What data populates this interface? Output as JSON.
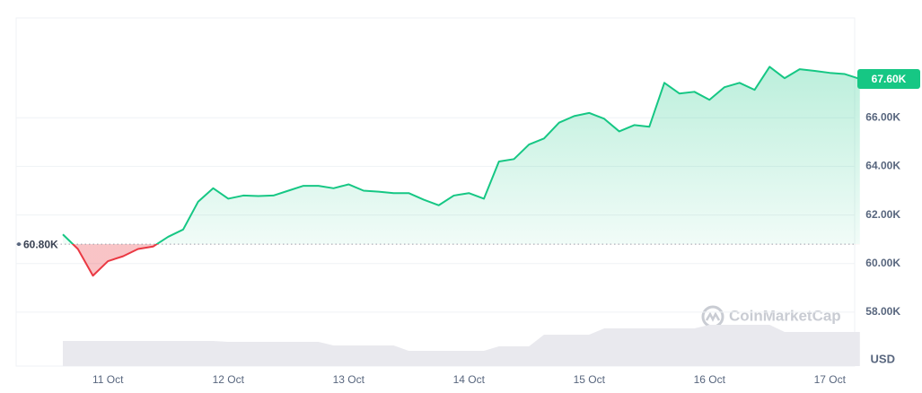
{
  "chart_data": {
    "type": "line",
    "categories": [
      null,
      null,
      null,
      "11 Oct",
      null,
      null,
      null,
      null,
      null,
      null,
      null,
      "12 Oct",
      null,
      null,
      null,
      null,
      null,
      null,
      null,
      "13 Oct",
      null,
      null,
      null,
      null,
      null,
      null,
      null,
      "14 Oct",
      null,
      null,
      null,
      null,
      null,
      null,
      null,
      "15 Oct",
      null,
      null,
      null,
      null,
      null,
      null,
      null,
      "16 Oct",
      null,
      null,
      null,
      null,
      null,
      null,
      null,
      "17 Oct",
      null,
      null
    ],
    "values": [
      61200,
      60600,
      59500,
      60100,
      60300,
      60600,
      60700,
      61100,
      61400,
      62550,
      63100,
      62670,
      62800,
      62780,
      62800,
      63000,
      63200,
      63200,
      63100,
      63260,
      63000,
      62960,
      62900,
      62900,
      62630,
      62400,
      62800,
      62900,
      62670,
      64200,
      64300,
      64900,
      65150,
      65800,
      66070,
      66200,
      65960,
      65440,
      65700,
      65630,
      67440,
      67000,
      67070,
      66740,
      67260,
      67440,
      67150,
      68100,
      67630,
      68000,
      67930,
      67850,
      67800,
      67600
    ],
    "up_color": "#16c784",
    "down_color": "#ea3943",
    "baseline": 60800,
    "baseline_label": "60.80K",
    "last_value_label": "67.60K",
    "ylim": [
      55780,
      70110
    ],
    "yticks": [
      {
        "value": 58000,
        "label": "58.00K"
      },
      {
        "value": 60000,
        "label": "60.00K"
      },
      {
        "value": 62000,
        "label": "62.00K"
      },
      {
        "value": 64000,
        "label": "64.00K"
      },
      {
        "value": 66000,
        "label": "66.00K"
      }
    ],
    "y_label": "USD",
    "grid": true,
    "watermark": "CoinMarketCap",
    "volume": {
      "color": "#e9e9ee",
      "values": [
        28,
        28,
        28,
        28,
        28,
        28,
        28,
        28,
        28,
        28,
        28,
        27,
        27,
        27,
        27,
        27,
        27,
        27,
        23,
        23,
        23,
        23,
        23,
        17,
        17,
        17,
        17,
        17,
        17,
        22,
        22,
        22,
        35,
        35,
        35,
        35,
        42,
        42,
        42,
        42,
        42,
        42,
        42,
        46,
        46,
        46,
        46,
        46,
        38,
        38,
        38,
        38,
        38,
        38
      ]
    }
  }
}
